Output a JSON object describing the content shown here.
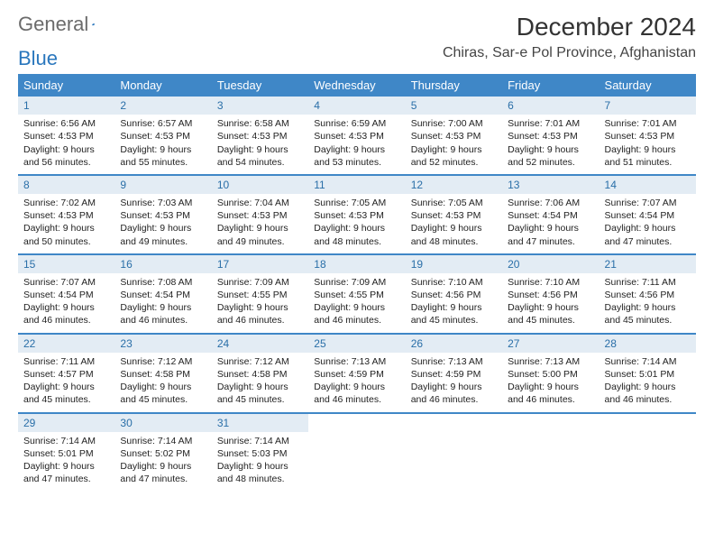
{
  "brand": {
    "part1": "General",
    "part2": "Blue"
  },
  "title": "December 2024",
  "location": "Chiras, Sar-e Pol Province, Afghanistan",
  "colors": {
    "header_bg": "#3f87c7",
    "header_text": "#ffffff",
    "daynum_bg": "#e3ecf4",
    "daynum_text": "#2a6fa8",
    "row_border": "#3f87c7",
    "body_text": "#222222",
    "brand_gray": "#6b6b6b",
    "brand_blue": "#2a77bd"
  },
  "weekdays": [
    "Sunday",
    "Monday",
    "Tuesday",
    "Wednesday",
    "Thursday",
    "Friday",
    "Saturday"
  ],
  "weeks": [
    [
      {
        "n": "1",
        "sr": "Sunrise: 6:56 AM",
        "ss": "Sunset: 4:53 PM",
        "d1": "Daylight: 9 hours",
        "d2": "and 56 minutes."
      },
      {
        "n": "2",
        "sr": "Sunrise: 6:57 AM",
        "ss": "Sunset: 4:53 PM",
        "d1": "Daylight: 9 hours",
        "d2": "and 55 minutes."
      },
      {
        "n": "3",
        "sr": "Sunrise: 6:58 AM",
        "ss": "Sunset: 4:53 PM",
        "d1": "Daylight: 9 hours",
        "d2": "and 54 minutes."
      },
      {
        "n": "4",
        "sr": "Sunrise: 6:59 AM",
        "ss": "Sunset: 4:53 PM",
        "d1": "Daylight: 9 hours",
        "d2": "and 53 minutes."
      },
      {
        "n": "5",
        "sr": "Sunrise: 7:00 AM",
        "ss": "Sunset: 4:53 PM",
        "d1": "Daylight: 9 hours",
        "d2": "and 52 minutes."
      },
      {
        "n": "6",
        "sr": "Sunrise: 7:01 AM",
        "ss": "Sunset: 4:53 PM",
        "d1": "Daylight: 9 hours",
        "d2": "and 52 minutes."
      },
      {
        "n": "7",
        "sr": "Sunrise: 7:01 AM",
        "ss": "Sunset: 4:53 PM",
        "d1": "Daylight: 9 hours",
        "d2": "and 51 minutes."
      }
    ],
    [
      {
        "n": "8",
        "sr": "Sunrise: 7:02 AM",
        "ss": "Sunset: 4:53 PM",
        "d1": "Daylight: 9 hours",
        "d2": "and 50 minutes."
      },
      {
        "n": "9",
        "sr": "Sunrise: 7:03 AM",
        "ss": "Sunset: 4:53 PM",
        "d1": "Daylight: 9 hours",
        "d2": "and 49 minutes."
      },
      {
        "n": "10",
        "sr": "Sunrise: 7:04 AM",
        "ss": "Sunset: 4:53 PM",
        "d1": "Daylight: 9 hours",
        "d2": "and 49 minutes."
      },
      {
        "n": "11",
        "sr": "Sunrise: 7:05 AM",
        "ss": "Sunset: 4:53 PM",
        "d1": "Daylight: 9 hours",
        "d2": "and 48 minutes."
      },
      {
        "n": "12",
        "sr": "Sunrise: 7:05 AM",
        "ss": "Sunset: 4:53 PM",
        "d1": "Daylight: 9 hours",
        "d2": "and 48 minutes."
      },
      {
        "n": "13",
        "sr": "Sunrise: 7:06 AM",
        "ss": "Sunset: 4:54 PM",
        "d1": "Daylight: 9 hours",
        "d2": "and 47 minutes."
      },
      {
        "n": "14",
        "sr": "Sunrise: 7:07 AM",
        "ss": "Sunset: 4:54 PM",
        "d1": "Daylight: 9 hours",
        "d2": "and 47 minutes."
      }
    ],
    [
      {
        "n": "15",
        "sr": "Sunrise: 7:07 AM",
        "ss": "Sunset: 4:54 PM",
        "d1": "Daylight: 9 hours",
        "d2": "and 46 minutes."
      },
      {
        "n": "16",
        "sr": "Sunrise: 7:08 AM",
        "ss": "Sunset: 4:54 PM",
        "d1": "Daylight: 9 hours",
        "d2": "and 46 minutes."
      },
      {
        "n": "17",
        "sr": "Sunrise: 7:09 AM",
        "ss": "Sunset: 4:55 PM",
        "d1": "Daylight: 9 hours",
        "d2": "and 46 minutes."
      },
      {
        "n": "18",
        "sr": "Sunrise: 7:09 AM",
        "ss": "Sunset: 4:55 PM",
        "d1": "Daylight: 9 hours",
        "d2": "and 46 minutes."
      },
      {
        "n": "19",
        "sr": "Sunrise: 7:10 AM",
        "ss": "Sunset: 4:56 PM",
        "d1": "Daylight: 9 hours",
        "d2": "and 45 minutes."
      },
      {
        "n": "20",
        "sr": "Sunrise: 7:10 AM",
        "ss": "Sunset: 4:56 PM",
        "d1": "Daylight: 9 hours",
        "d2": "and 45 minutes."
      },
      {
        "n": "21",
        "sr": "Sunrise: 7:11 AM",
        "ss": "Sunset: 4:56 PM",
        "d1": "Daylight: 9 hours",
        "d2": "and 45 minutes."
      }
    ],
    [
      {
        "n": "22",
        "sr": "Sunrise: 7:11 AM",
        "ss": "Sunset: 4:57 PM",
        "d1": "Daylight: 9 hours",
        "d2": "and 45 minutes."
      },
      {
        "n": "23",
        "sr": "Sunrise: 7:12 AM",
        "ss": "Sunset: 4:58 PM",
        "d1": "Daylight: 9 hours",
        "d2": "and 45 minutes."
      },
      {
        "n": "24",
        "sr": "Sunrise: 7:12 AM",
        "ss": "Sunset: 4:58 PM",
        "d1": "Daylight: 9 hours",
        "d2": "and 45 minutes."
      },
      {
        "n": "25",
        "sr": "Sunrise: 7:13 AM",
        "ss": "Sunset: 4:59 PM",
        "d1": "Daylight: 9 hours",
        "d2": "and 46 minutes."
      },
      {
        "n": "26",
        "sr": "Sunrise: 7:13 AM",
        "ss": "Sunset: 4:59 PM",
        "d1": "Daylight: 9 hours",
        "d2": "and 46 minutes."
      },
      {
        "n": "27",
        "sr": "Sunrise: 7:13 AM",
        "ss": "Sunset: 5:00 PM",
        "d1": "Daylight: 9 hours",
        "d2": "and 46 minutes."
      },
      {
        "n": "28",
        "sr": "Sunrise: 7:14 AM",
        "ss": "Sunset: 5:01 PM",
        "d1": "Daylight: 9 hours",
        "d2": "and 46 minutes."
      }
    ],
    [
      {
        "n": "29",
        "sr": "Sunrise: 7:14 AM",
        "ss": "Sunset: 5:01 PM",
        "d1": "Daylight: 9 hours",
        "d2": "and 47 minutes."
      },
      {
        "n": "30",
        "sr": "Sunrise: 7:14 AM",
        "ss": "Sunset: 5:02 PM",
        "d1": "Daylight: 9 hours",
        "d2": "and 47 minutes."
      },
      {
        "n": "31",
        "sr": "Sunrise: 7:14 AM",
        "ss": "Sunset: 5:03 PM",
        "d1": "Daylight: 9 hours",
        "d2": "and 48 minutes."
      },
      null,
      null,
      null,
      null
    ]
  ]
}
